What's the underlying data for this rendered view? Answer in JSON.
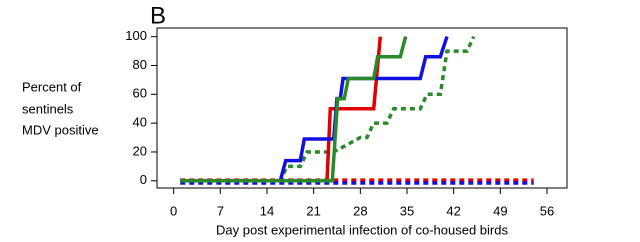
{
  "chart_data": {
    "type": "line",
    "panel_label": "B",
    "ylabel": [
      "Percent of",
      "sentinels",
      "MDV positive"
    ],
    "xlabel": "Day post experimental infection of co-housed birds",
    "xlim": [
      -2.5,
      59
    ],
    "ylim": [
      -5,
      106
    ],
    "xticks": [
      0,
      7,
      14,
      21,
      28,
      35,
      42,
      49,
      56
    ],
    "yticks": [
      0,
      20,
      40,
      60,
      80,
      100
    ],
    "series": [
      {
        "color": "#2a8a2a",
        "dash": true,
        "x": [
          1,
          16,
          17,
          19,
          20,
          24,
          28,
          29,
          30,
          32,
          33,
          37,
          38,
          40,
          41,
          44,
          45
        ],
        "values": [
          0,
          0,
          10,
          10,
          20,
          20,
          30,
          30,
          40,
          40,
          50,
          50,
          60,
          60,
          90,
          90,
          100
        ]
      },
      {
        "color": "#e00000",
        "dash": true,
        "x": [
          1,
          54
        ],
        "values": [
          0.5,
          0.5
        ]
      },
      {
        "color": "#1010e0",
        "dash": true,
        "x": [
          1,
          54
        ],
        "values": [
          -1.5,
          -1.5
        ]
      },
      {
        "color": "#e00000",
        "dash": false,
        "x": [
          1,
          23,
          23.5,
          30,
          31
        ],
        "values": [
          0,
          0,
          50,
          50,
          100
        ]
      },
      {
        "color": "#1010e0",
        "dash": false,
        "x": [
          1,
          16,
          16.8,
          19,
          19.6,
          24,
          24.5,
          25,
          25.4,
          37,
          37.8,
          40,
          41
        ],
        "values": [
          0,
          0,
          14,
          14,
          29,
          29,
          57,
          57,
          71,
          71,
          86,
          86,
          100
        ]
      },
      {
        "color": "#2a8a2a",
        "dash": false,
        "x": [
          1,
          23.8,
          24.6,
          25.6,
          26.2,
          30,
          30.6,
          34,
          34.8
        ],
        "values": [
          0,
          0,
          57,
          57,
          71,
          71,
          86,
          86,
          100
        ]
      }
    ]
  }
}
